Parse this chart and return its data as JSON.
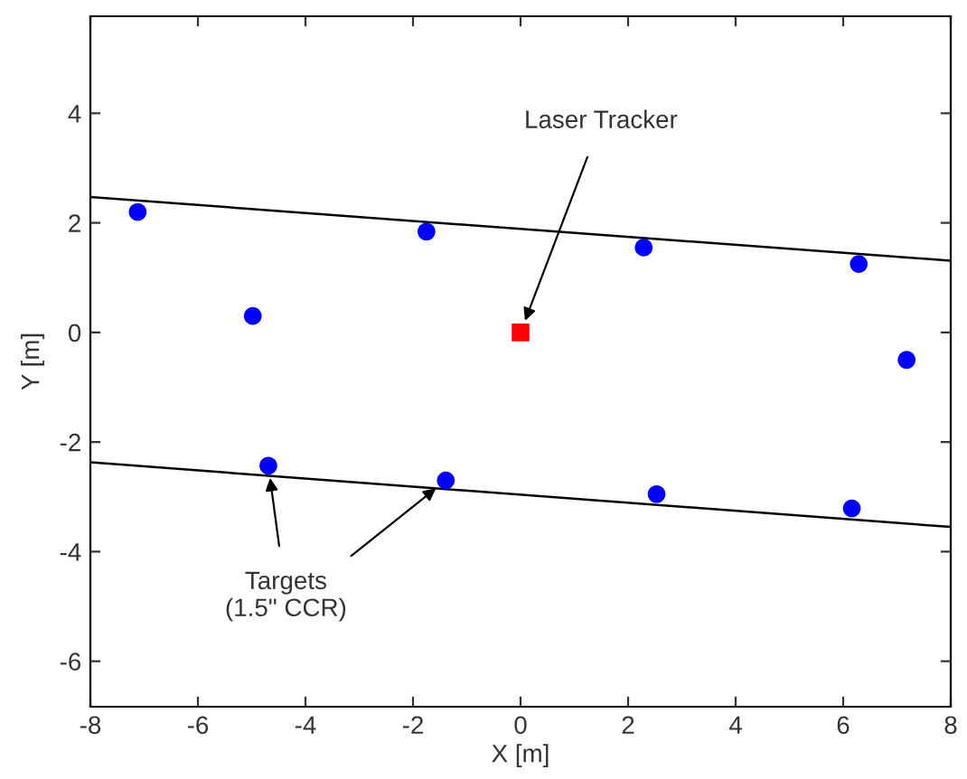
{
  "chart_data": {
    "type": "scatter",
    "xlabel": "X [m]",
    "ylabel": "Y [m]",
    "xlim": [
      -8,
      8
    ],
    "ylim": [
      -6.83,
      5.77
    ],
    "xticks": [
      -8,
      -6,
      -4,
      -2,
      0,
      2,
      4,
      6,
      8
    ],
    "yticks": [
      -6,
      -4,
      -2,
      0,
      2,
      4
    ],
    "grid": false,
    "legend": false,
    "series": [
      {
        "type": "line",
        "color": "#000000",
        "x": [
          -8,
          8
        ],
        "values": [
          2.47,
          1.31
        ],
        "marker": "none"
      },
      {
        "type": "line",
        "color": "#000000",
        "x": [
          -8,
          8
        ],
        "values": [
          -2.37,
          -3.55
        ],
        "marker": "none"
      },
      {
        "color": "#0000ff",
        "marker": "circle",
        "x": [
          -7.12,
          -4.98,
          -1.75,
          2.29,
          6.29,
          7.18,
          -4.69,
          -1.39,
          2.53,
          6.16
        ],
        "values": [
          2.2,
          0.3,
          1.84,
          1.55,
          1.25,
          -0.5,
          -2.43,
          -2.7,
          -2.95,
          -3.21
        ]
      },
      {
        "color": "#ff0000",
        "marker": "square",
        "x": [
          0
        ],
        "values": [
          0
        ]
      }
    ],
    "annotations": [
      {
        "text": "Laser Tracker",
        "x": 0,
        "y": 0
      },
      {
        "text": "Targets\n(1.5\" CCR)",
        "x": -4.69,
        "y": -2.43
      }
    ]
  }
}
